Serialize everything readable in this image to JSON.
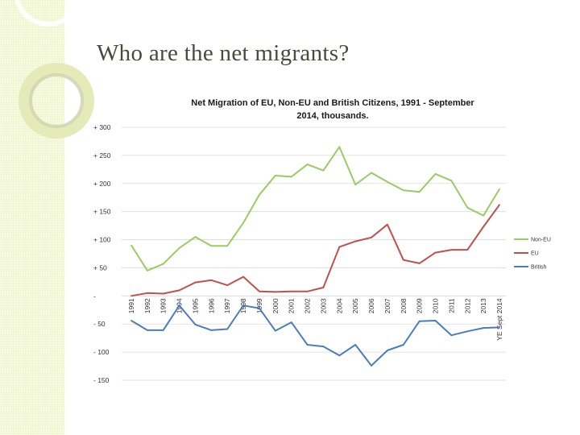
{
  "slide": {
    "title": "Who are the net migrants?"
  },
  "colors": {
    "non_eu": "#9bcb61",
    "eu": "#c0504d",
    "british": "#4a7ebb",
    "gridline": "#d9d9d9",
    "strip": "#f1f5cc"
  },
  "chart_data": {
    "type": "line",
    "title_lines": [
      "Net Migration of EU, Non-EU and British Citizens, 1991 - September",
      "2014, thousands."
    ],
    "xlabel": "",
    "ylabel": "",
    "ylim": [
      -150,
      300
    ],
    "y_ticks": [
      300,
      250,
      200,
      150,
      100,
      50,
      0,
      -50,
      -100,
      -150
    ],
    "y_tick_labels": [
      "+ 300",
      "+ 250",
      "+ 200",
      "+ 150",
      "+ 100",
      "+ 50",
      "-",
      "- 50",
      "- 100",
      "- 150"
    ],
    "categories": [
      "1991",
      "1992",
      "1993",
      "1994",
      "1995",
      "1996",
      "1997",
      "1998",
      "1999",
      "2000",
      "2001",
      "2002",
      "2003",
      "2004",
      "2005",
      "2006",
      "2007",
      "2008",
      "2009",
      "2010",
      "2011",
      "2012",
      "2013",
      "YE Sept 2014"
    ],
    "grid": "horizontal",
    "legend_position": "right",
    "series": [
      {
        "name": "Non-EU",
        "color": "#9bcb61",
        "values": [
          90,
          45,
          57,
          85,
          105,
          89,
          89,
          130,
          180,
          214,
          212,
          234,
          223,
          265,
          198,
          219,
          203,
          188,
          185,
          217,
          205,
          157,
          143,
          190
        ]
      },
      {
        "name": "EU",
        "color": "#c0504d",
        "values": [
          0,
          5,
          4,
          10,
          24,
          28,
          19,
          34,
          8,
          7,
          8,
          8,
          15,
          87,
          97,
          104,
          127,
          64,
          58,
          77,
          82,
          82,
          123,
          162
        ]
      },
      {
        "name": "British",
        "color": "#4a7ebb",
        "values": [
          -44,
          -61,
          -61,
          -17,
          -51,
          -61,
          -59,
          -17,
          -22,
          -62,
          -47,
          -87,
          -90,
          -106,
          -87,
          -124,
          -97,
          -87,
          -45,
          -44,
          -70,
          -63,
          -57,
          -56
        ]
      }
    ]
  }
}
